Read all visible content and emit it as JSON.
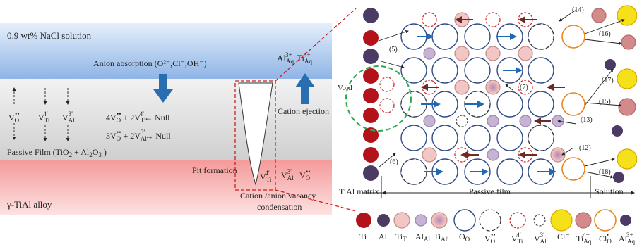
{
  "left_panel": {
    "solution_label": "0.9 wt% NaCl solution",
    "anion_absorption": "Anion absorption (O²⁻,Cl⁻,OH⁻)",
    "cation_ejection": "Cation ejection",
    "passive_film_label": "Passive Film (TiO₂ + Al₂O₃ )",
    "alloy_label": "γ-TiAl alloy",
    "pit_formation": "Pit formation",
    "condensation_line1": "Cation /anion vacancy",
    "condensation_line2": "condensation",
    "reaction1": "4V_O^•• + 2V_Ti^4′ ↔ Null",
    "reaction2": "3V_O^•• + 2V_Al^3′ ↔ Null",
    "ions_top": "Al_Aq^3+ Ti_Aq^4+",
    "vacancies_left": [
      "V_O^••",
      "V_Ti^4′",
      "V_Al^3′"
    ],
    "vacancies_pit": [
      "V_Ti^4′",
      "V_Al^3′",
      "V_O^••"
    ]
  },
  "right_panel": {
    "void_label": "Void",
    "region_labels": [
      "TiAl matrix",
      "Passive film",
      "Solution"
    ],
    "step_numbers": [
      "(5)",
      "(6)",
      "(7)",
      "(12)",
      "(13)",
      "(14)",
      "(15)",
      "(16)",
      "(17)",
      "(18)"
    ]
  },
  "legend": {
    "items": [
      {
        "label": "Ti"
      },
      {
        "label": "Al"
      },
      {
        "label": "Ti_Ti"
      },
      {
        "label": "Al_Al"
      },
      {
        "label": "Ti_Al′"
      },
      {
        "label": "O_O"
      },
      {
        "label": "V_O^••"
      },
      {
        "label": "V_Ti^4′"
      },
      {
        "label": "V_Al^3′"
      },
      {
        "label": "Cl⁻"
      },
      {
        "label": "Ti_Aq^4+"
      },
      {
        "label": "Cl_O^•"
      },
      {
        "label": "Al_Aq^3+"
      }
    ]
  },
  "colors": {
    "ti": "#b3121b",
    "al": "#4b3a63",
    "ti_ti": "#f2c6c4",
    "al_al": "#c5b4d4",
    "o_o": "#2f4a86",
    "cl": "#f5e11a",
    "cl_ring": "#e8871e",
    "ti_aq": "#d48a8a",
    "arrow_blue": "#1f68b3",
    "arrow_brown": "#6b2a24",
    "film_gray": "#d8d8d8",
    "solution_blue": "#9fbfe8",
    "alloy_pink": "#f7b6b6",
    "void_green": "#2fa84a",
    "dash_red": "#cc1f1f"
  }
}
